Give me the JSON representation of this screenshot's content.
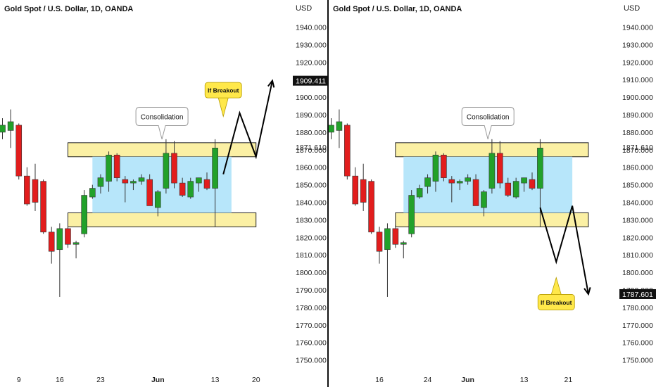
{
  "colors": {
    "up": "#22a12a",
    "down": "#e21d1d",
    "zone": "#fbf0a4",
    "consolidation": "#b7e6fa",
    "callout": "#ffe84a"
  },
  "chart_data": [
    {
      "type": "candlestick",
      "title": "Gold Spot / U.S. Dollar, 1D, OANDA",
      "currency": "USD",
      "y_ticks": [
        1750,
        1760,
        1770,
        1780,
        1790,
        1800,
        1810,
        1820,
        1830,
        1840,
        1850,
        1860,
        1870,
        1880,
        1890,
        1900,
        1910,
        1920,
        1930,
        1940
      ],
      "y_tick_labels": [
        "1750.000",
        "1760.000",
        "1770.000",
        "1780.000",
        "1790.000",
        "1800.000",
        "1810.000",
        "1820.000",
        "1830.000",
        "1840.000",
        "1850.000",
        "1860.000",
        "1870.000",
        "1880.000",
        "1890.000",
        "1900.000",
        "1910.000",
        "1920.000",
        "1930.000",
        "1940.000"
      ],
      "x_labels": [
        {
          "label": "9",
          "bar": 2
        },
        {
          "label": "16",
          "bar": 7
        },
        {
          "label": "23",
          "bar": 12
        },
        {
          "label": "Jun",
          "bar": 19
        },
        {
          "label": "13",
          "bar": 26
        },
        {
          "label": "20",
          "bar": 31
        }
      ],
      "candles": [
        {
          "o": 1880,
          "h": 1888,
          "l": 1876,
          "c": 1884
        },
        {
          "o": 1881,
          "h": 1893,
          "l": 1871,
          "c": 1886
        },
        {
          "o": 1884,
          "h": 1885,
          "l": 1853,
          "c": 1855
        },
        {
          "o": 1855,
          "h": 1860,
          "l": 1838,
          "c": 1839
        },
        {
          "o": 1853,
          "h": 1862,
          "l": 1835,
          "c": 1840
        },
        {
          "o": 1852,
          "h": 1853,
          "l": 1822,
          "c": 1823
        },
        {
          "o": 1823,
          "h": 1826,
          "l": 1805,
          "c": 1812
        },
        {
          "o": 1813,
          "h": 1828,
          "l": 1786,
          "c": 1825
        },
        {
          "o": 1825,
          "h": 1827,
          "l": 1814,
          "c": 1816
        },
        {
          "o": 1816,
          "h": 1818,
          "l": 1808,
          "c": 1817
        },
        {
          "o": 1822,
          "h": 1847,
          "l": 1820,
          "c": 1844
        },
        {
          "o": 1843,
          "h": 1850,
          "l": 1842,
          "c": 1848
        },
        {
          "o": 1849,
          "h": 1856,
          "l": 1845,
          "c": 1854
        },
        {
          "o": 1852,
          "h": 1869,
          "l": 1846,
          "c": 1867
        },
        {
          "o": 1867,
          "h": 1868,
          "l": 1852,
          "c": 1854
        },
        {
          "o": 1853,
          "h": 1855,
          "l": 1840,
          "c": 1851
        },
        {
          "o": 1851,
          "h": 1853,
          "l": 1847,
          "c": 1852
        },
        {
          "o": 1852,
          "h": 1856,
          "l": 1850,
          "c": 1854
        },
        {
          "o": 1853,
          "h": 1856,
          "l": 1838,
          "c": 1838
        },
        {
          "o": 1837,
          "h": 1847,
          "l": 1832,
          "c": 1846
        },
        {
          "o": 1848,
          "h": 1876,
          "l": 1845,
          "c": 1868
        },
        {
          "o": 1868,
          "h": 1875,
          "l": 1848,
          "c": 1851
        },
        {
          "o": 1851,
          "h": 1854,
          "l": 1843,
          "c": 1844
        },
        {
          "o": 1843,
          "h": 1854,
          "l": 1842,
          "c": 1852
        },
        {
          "o": 1851,
          "h": 1854,
          "l": 1846,
          "c": 1854
        },
        {
          "o": 1853,
          "h": 1857,
          "l": 1847,
          "c": 1848
        },
        {
          "o": 1848,
          "h": 1876,
          "l": 1826,
          "c": 1871
        }
      ],
      "zones": [
        {
          "kind": "resistance",
          "y0": 1866,
          "y1": 1874,
          "bar0": 8,
          "bar1": 31
        },
        {
          "kind": "support",
          "y0": 1826,
          "y1": 1834,
          "bar0": 8,
          "bar1": 31
        },
        {
          "kind": "consolidation",
          "y0": 1834,
          "y1": 1866,
          "bar0": 11,
          "bar1": 28
        }
      ],
      "annotations": [
        {
          "kind": "label",
          "text": "Consolidation",
          "bar": 19.5,
          "y": 1889,
          "pointer_y": 1876
        },
        {
          "kind": "callout",
          "text": "If Breakout",
          "bar": 27,
          "y": 1904,
          "pointer_y": 1889
        },
        {
          "kind": "path",
          "points": [
            [
              27,
              1856
            ],
            [
              29,
              1891
            ],
            [
              31,
              1866
            ],
            [
              33,
              1909.411
            ]
          ]
        }
      ],
      "price_label": {
        "value": 1909.411,
        "text": "1909.411"
      },
      "hline_label": {
        "value": 1871.61,
        "text": "1871.610"
      }
    },
    {
      "type": "candlestick",
      "title": "Gold Spot / U.S. Dollar, 1D, OANDA",
      "currency": "USD",
      "y_ticks": [
        1750,
        1760,
        1770,
        1780,
        1790,
        1800,
        1810,
        1820,
        1830,
        1840,
        1850,
        1860,
        1870,
        1880,
        1890,
        1900,
        1910,
        1920,
        1930,
        1940
      ],
      "y_tick_labels": [
        "1750.000",
        "1760.000",
        "1770.000",
        "1780.000",
        "1790.000",
        "1800.000",
        "1810.000",
        "1820.000",
        "1830.000",
        "1840.000",
        "1850.000",
        "1860.000",
        "1870.000",
        "1880.000",
        "1890.000",
        "1900.000",
        "1910.000",
        "1920.000",
        "1930.000",
        "1940.000"
      ],
      "x_labels": [
        {
          "label": "16",
          "bar": 6
        },
        {
          "label": "24",
          "bar": 12
        },
        {
          "label": "Jun",
          "bar": 17
        },
        {
          "label": "13",
          "bar": 24
        },
        {
          "label": "21",
          "bar": 29.5
        }
      ],
      "candles": [
        {
          "o": 1880,
          "h": 1888,
          "l": 1876,
          "c": 1884
        },
        {
          "o": 1881,
          "h": 1893,
          "l": 1871,
          "c": 1886
        },
        {
          "o": 1884,
          "h": 1885,
          "l": 1853,
          "c": 1855
        },
        {
          "o": 1855,
          "h": 1860,
          "l": 1838,
          "c": 1839
        },
        {
          "o": 1853,
          "h": 1862,
          "l": 1835,
          "c": 1840
        },
        {
          "o": 1852,
          "h": 1853,
          "l": 1822,
          "c": 1823
        },
        {
          "o": 1823,
          "h": 1826,
          "l": 1805,
          "c": 1812
        },
        {
          "o": 1813,
          "h": 1828,
          "l": 1786,
          "c": 1825
        },
        {
          "o": 1825,
          "h": 1827,
          "l": 1814,
          "c": 1816
        },
        {
          "o": 1816,
          "h": 1818,
          "l": 1808,
          "c": 1817
        },
        {
          "o": 1822,
          "h": 1847,
          "l": 1820,
          "c": 1844
        },
        {
          "o": 1843,
          "h": 1850,
          "l": 1842,
          "c": 1848
        },
        {
          "o": 1849,
          "h": 1856,
          "l": 1845,
          "c": 1854
        },
        {
          "o": 1852,
          "h": 1869,
          "l": 1846,
          "c": 1867
        },
        {
          "o": 1867,
          "h": 1868,
          "l": 1852,
          "c": 1854
        },
        {
          "o": 1853,
          "h": 1855,
          "l": 1840,
          "c": 1851
        },
        {
          "o": 1851,
          "h": 1853,
          "l": 1847,
          "c": 1852
        },
        {
          "o": 1852,
          "h": 1856,
          "l": 1850,
          "c": 1854
        },
        {
          "o": 1853,
          "h": 1856,
          "l": 1838,
          "c": 1838
        },
        {
          "o": 1837,
          "h": 1847,
          "l": 1832,
          "c": 1846
        },
        {
          "o": 1848,
          "h": 1876,
          "l": 1845,
          "c": 1868
        },
        {
          "o": 1868,
          "h": 1875,
          "l": 1848,
          "c": 1851
        },
        {
          "o": 1851,
          "h": 1854,
          "l": 1843,
          "c": 1844
        },
        {
          "o": 1843,
          "h": 1854,
          "l": 1842,
          "c": 1852
        },
        {
          "o": 1851,
          "h": 1854,
          "l": 1846,
          "c": 1854
        },
        {
          "o": 1853,
          "h": 1857,
          "l": 1847,
          "c": 1848
        },
        {
          "o": 1848,
          "h": 1876,
          "l": 1826,
          "c": 1871
        }
      ],
      "zones": [
        {
          "kind": "resistance",
          "y0": 1866,
          "y1": 1874,
          "bar0": 8,
          "bar1": 32
        },
        {
          "kind": "support",
          "y0": 1826,
          "y1": 1834,
          "bar0": 8,
          "bar1": 32
        },
        {
          "kind": "consolidation",
          "y0": 1834,
          "y1": 1866,
          "bar0": 9,
          "bar1": 30
        }
      ],
      "annotations": [
        {
          "kind": "label",
          "text": "Consolidation",
          "bar": 19.5,
          "y": 1889,
          "pointer_y": 1876
        },
        {
          "kind": "callout",
          "text": "If Breakout",
          "bar": 28,
          "y": 1783,
          "pointer_y": 1797
        },
        {
          "kind": "path",
          "points": [
            [
              26,
              1837
            ],
            [
              28,
              1806
            ],
            [
              30,
              1838
            ],
            [
              32,
              1787.601
            ]
          ]
        }
      ],
      "price_label": {
        "value": 1787.601,
        "text": "1787.601"
      },
      "hline_label": {
        "value": 1871.61,
        "text": "1871.610"
      }
    }
  ]
}
